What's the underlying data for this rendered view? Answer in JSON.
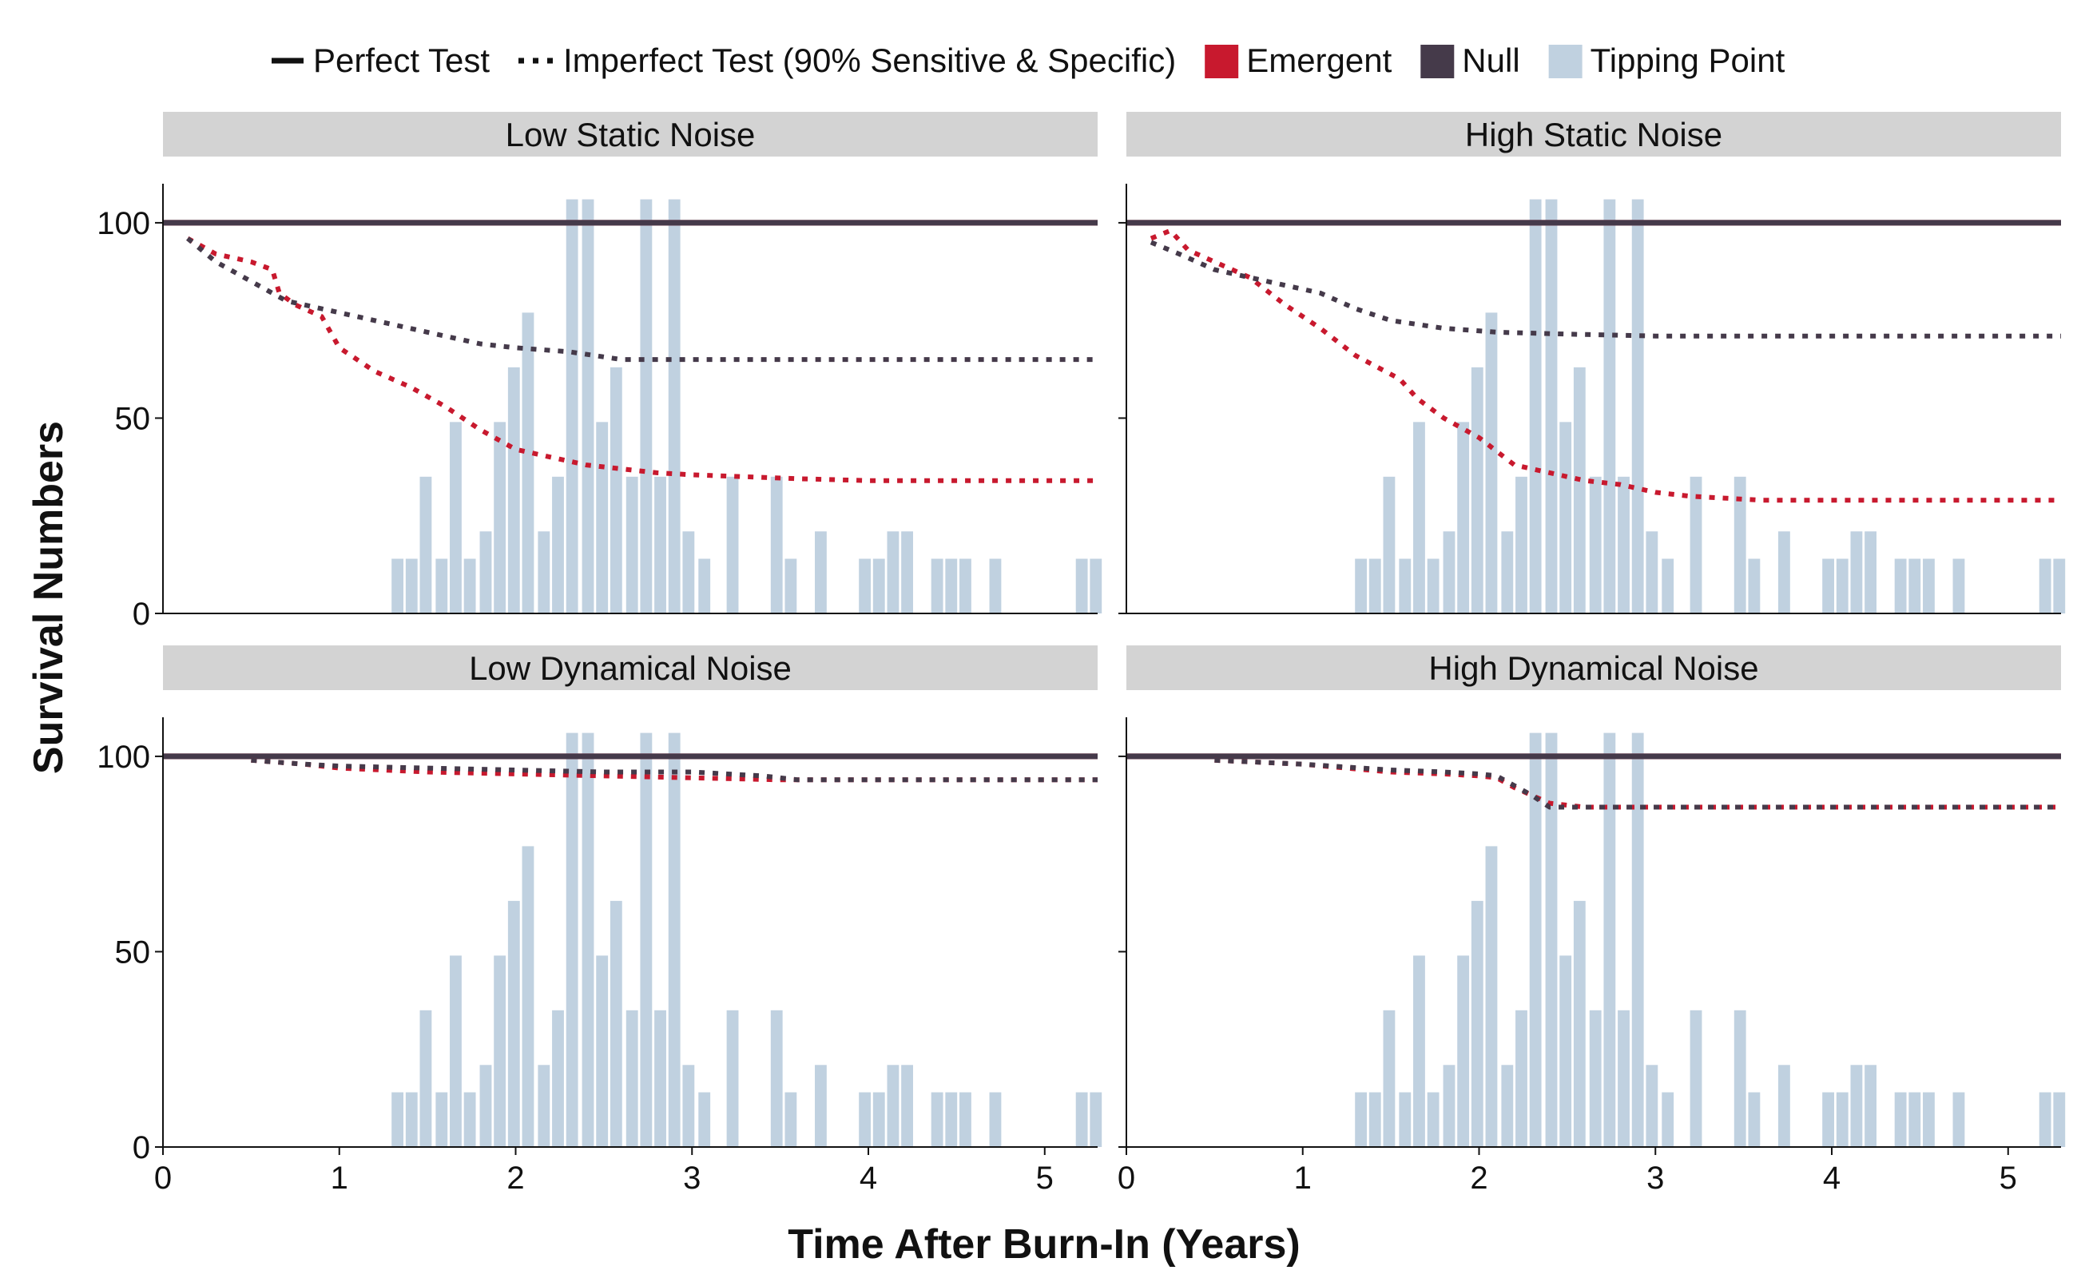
{
  "chart_data": {
    "type": "line",
    "xlabel": "Time After Burn-In (Years)",
    "ylabel": "Survival Numbers",
    "xlim": [
      0,
      5.3
    ],
    "ylim": [
      0,
      110
    ],
    "xticks": [
      0,
      1,
      2,
      3,
      4,
      5
    ],
    "yticks": [
      0,
      50,
      100
    ],
    "legend": {
      "placement": "top",
      "items": [
        {
          "label": "Perfect Test",
          "kind": "solid-line",
          "color": "#111111"
        },
        {
          "label": "Imperfect Test (90% Sensitive & Specific)",
          "kind": "dotted-line",
          "color": "#111111"
        },
        {
          "label": "Emergent",
          "kind": "fill",
          "color": "#c8192e"
        },
        {
          "label": "Null",
          "kind": "fill",
          "color": "#453a4a"
        },
        {
          "label": "Tipping Point",
          "kind": "fill",
          "color": "#c0d1e0"
        }
      ]
    },
    "colors": {
      "emergent": "#c8192e",
      "null": "#453a4a",
      "tipping": "#c0d1e0",
      "strip": "#d3d3d3"
    },
    "tipping_histogram": {
      "description_unit": "count scaled to survival axis",
      "x": [
        1.33,
        1.41,
        1.49,
        1.58,
        1.66,
        1.74,
        1.83,
        1.91,
        1.99,
        2.07,
        2.16,
        2.24,
        2.32,
        2.41,
        2.49,
        2.57,
        2.66,
        2.74,
        2.82,
        2.9,
        2.98,
        3.07,
        3.23,
        3.48,
        3.56,
        3.73,
        3.98,
        4.06,
        4.14,
        4.22,
        4.39,
        4.47,
        4.55,
        4.72,
        5.21,
        5.29
      ],
      "values": [
        14,
        14,
        35,
        14,
        49,
        14,
        21,
        49,
        63,
        77,
        21,
        35,
        106,
        106,
        49,
        63,
        35,
        106,
        35,
        106,
        21,
        14,
        35,
        35,
        14,
        21,
        14,
        14,
        21,
        21,
        14,
        14,
        14,
        14,
        14,
        14
      ]
    },
    "panels": [
      {
        "title": "Low Static Noise",
        "series": [
          {
            "test": "perfect",
            "group": "Emergent",
            "x": [
              0,
              5.3
            ],
            "y": [
              100,
              100
            ]
          },
          {
            "test": "perfect",
            "group": "Null",
            "x": [
              0,
              5.3
            ],
            "y": [
              100,
              100
            ]
          },
          {
            "test": "imperfect",
            "group": "Emergent",
            "x": [
              0.14,
              0.3,
              0.5,
              0.62,
              0.66,
              0.75,
              0.9,
              1.0,
              1.2,
              1.4,
              1.6,
              1.8,
              2.0,
              2.2,
              2.4,
              2.6,
              2.8,
              3.0,
              3.3,
              3.6,
              4.0,
              4.5,
              5.0,
              5.3
            ],
            "y": [
              96,
              92,
              90,
              88,
              82,
              79,
              76,
              68,
              62,
              58,
              53,
              47,
              42,
              40,
              38,
              37,
              36,
              35.5,
              35,
              34.5,
              34,
              34,
              34,
              34
            ]
          },
          {
            "test": "imperfect",
            "group": "Null",
            "x": [
              0.14,
              0.3,
              0.5,
              0.7,
              0.9,
              1.1,
              1.3,
              1.5,
              1.8,
              2.0,
              2.3,
              2.6,
              2.9,
              3.2,
              4.0,
              5.0,
              5.3
            ],
            "y": [
              96,
              90,
              85,
              80,
              78,
              76,
              74,
              72,
              69,
              68,
              67,
              65,
              65,
              65,
              65,
              65,
              65
            ]
          }
        ]
      },
      {
        "title": "High Static Noise",
        "series": [
          {
            "test": "perfect",
            "group": "Emergent",
            "x": [
              0,
              5.3
            ],
            "y": [
              100,
              100
            ]
          },
          {
            "test": "perfect",
            "group": "Null",
            "x": [
              0,
              5.3
            ],
            "y": [
              100,
              100
            ]
          },
          {
            "test": "imperfect",
            "group": "Emergent",
            "x": [
              0.14,
              0.25,
              0.35,
              0.5,
              0.7,
              0.9,
              1.1,
              1.3,
              1.55,
              1.65,
              1.8,
              2.0,
              2.2,
              2.3,
              2.6,
              2.8,
              3.0,
              3.2,
              3.6,
              4.0,
              4.5,
              5.0,
              5.3
            ],
            "y": [
              96,
              98,
              93,
              90,
              86,
              79,
              73,
              66,
              60,
              55,
              50,
              45,
              38,
              37,
              34,
              33,
              31,
              30,
              29,
              29,
              29,
              29,
              29
            ]
          },
          {
            "test": "imperfect",
            "group": "Null",
            "x": [
              0.14,
              0.3,
              0.5,
              0.7,
              0.9,
              1.1,
              1.3,
              1.5,
              1.8,
              2.1,
              2.5,
              3.0,
              3.5,
              4.0,
              5.0,
              5.3
            ],
            "y": [
              95,
              92,
              88,
              86,
              84,
              82,
              78,
              75,
              73,
              72,
              71.5,
              71,
              71,
              71,
              71,
              71
            ]
          }
        ]
      },
      {
        "title": "Low Dynamical Noise",
        "series": [
          {
            "test": "perfect",
            "group": "Emergent",
            "x": [
              0,
              5.3
            ],
            "y": [
              100,
              100
            ]
          },
          {
            "test": "perfect",
            "group": "Null",
            "x": [
              0,
              5.3
            ],
            "y": [
              100,
              100
            ]
          },
          {
            "test": "imperfect",
            "group": "Emergent",
            "x": [
              0.5,
              0.8,
              1.0,
              1.5,
              2.0,
              2.5,
              3.0,
              3.5,
              4.0,
              5.0,
              5.3
            ],
            "y": [
              99,
              98,
              97,
              96,
              95.5,
              95,
              94.5,
              94,
              94,
              94,
              94
            ]
          },
          {
            "test": "imperfect",
            "group": "Null",
            "x": [
              0.5,
              0.8,
              1.0,
              1.5,
              2.0,
              2.5,
              3.0,
              3.4,
              3.6,
              4.0,
              5.0,
              5.3
            ],
            "y": [
              99,
              98,
              97.5,
              97,
              96.5,
              96,
              96,
              95,
              94,
              94,
              94,
              94
            ]
          }
        ]
      },
      {
        "title": "High Dynamical Noise",
        "series": [
          {
            "test": "perfect",
            "group": "Emergent",
            "x": [
              0,
              5.3
            ],
            "y": [
              100,
              100
            ]
          },
          {
            "test": "perfect",
            "group": "Null",
            "x": [
              0,
              5.3
            ],
            "y": [
              100,
              100
            ]
          },
          {
            "test": "imperfect",
            "group": "Emergent",
            "x": [
              0.5,
              1.0,
              1.5,
              1.8,
              2.0,
              2.1,
              2.2,
              2.3,
              2.4,
              2.6,
              3.0,
              4.0,
              5.0,
              5.3
            ],
            "y": [
              99,
              98,
              96,
              95.5,
              95,
              94.5,
              92,
              90,
              88,
              87,
              87,
              87,
              87,
              87
            ]
          },
          {
            "test": "imperfect",
            "group": "Null",
            "x": [
              0.5,
              1.0,
              1.5,
              1.8,
              2.0,
              2.1,
              2.2,
              2.3,
              2.4,
              2.6,
              3.0,
              4.0,
              5.0,
              5.3
            ],
            "y": [
              99,
              98,
              96.5,
              96,
              95.5,
              95,
              92.5,
              90,
              87,
              87,
              87,
              87,
              87,
              87
            ]
          }
        ]
      }
    ]
  }
}
